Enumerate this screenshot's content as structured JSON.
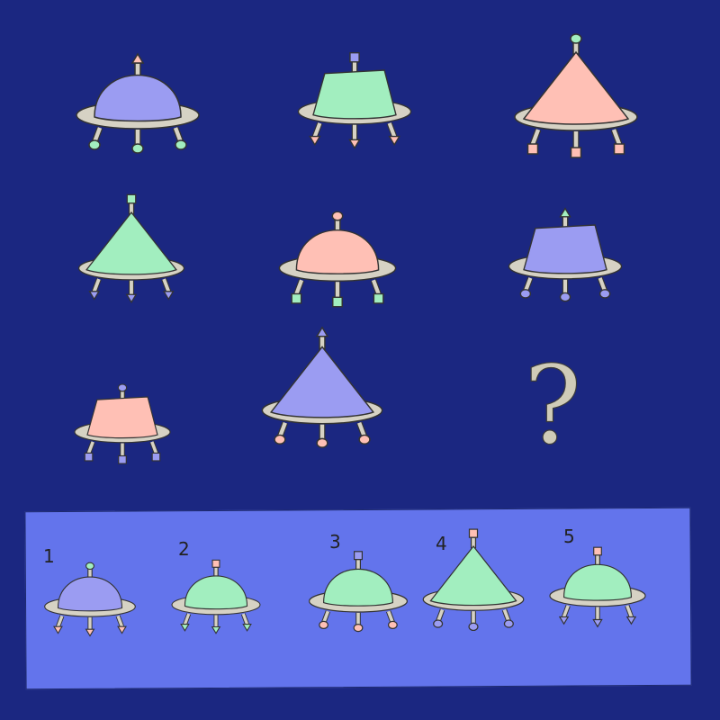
{
  "colors": {
    "background": "#1b2781",
    "panel": "#6374ec",
    "saucer": "#d6d2c4",
    "outline": "#333333",
    "purple": "#9b9cf2",
    "green": "#a2eebf",
    "pink": "#ffc0b5"
  },
  "grid": [
    {
      "dome": "round",
      "body": "purple",
      "antenna": "arrow",
      "antenna_color": "pink",
      "legs": "circle",
      "legs_color": "green"
    },
    {
      "dome": "trapezoid",
      "body": "green",
      "antenna": "square",
      "antenna_color": "purple",
      "legs": "arrow",
      "legs_color": "pink"
    },
    {
      "dome": "triangle",
      "body": "pink",
      "antenna": "circle",
      "antenna_color": "green",
      "legs": "square",
      "legs_color": "pink"
    },
    {
      "dome": "triangle",
      "body": "green",
      "antenna": "square",
      "antenna_color": "green",
      "legs": "arrow",
      "legs_color": "purple"
    },
    {
      "dome": "round",
      "body": "pink",
      "antenna": "circle",
      "antenna_color": "pink",
      "legs": "square",
      "legs_color": "green"
    },
    {
      "dome": "trapezoid",
      "body": "purple",
      "antenna": "arrow",
      "antenna_color": "green",
      "legs": "circle",
      "legs_color": "purple"
    },
    {
      "dome": "trapezoid",
      "body": "pink",
      "antenna": "circle",
      "antenna_color": "purple",
      "legs": "square",
      "legs_color": "purple"
    },
    {
      "dome": "triangle",
      "body": "purple",
      "antenna": "arrow",
      "antenna_color": "purple",
      "legs": "circle",
      "legs_color": "pink"
    }
  ],
  "question_mark": "?",
  "options": [
    {
      "label": "1",
      "dome": "round",
      "body": "purple",
      "antenna": "circle",
      "antenna_color": "green",
      "legs": "arrow",
      "legs_color": "pink"
    },
    {
      "label": "2",
      "dome": "round",
      "body": "green",
      "antenna": "square",
      "antenna_color": "pink",
      "legs": "arrow",
      "legs_color": "green"
    },
    {
      "label": "3",
      "dome": "round",
      "body": "green",
      "antenna": "square",
      "antenna_color": "purple",
      "legs": "circle",
      "legs_color": "pink"
    },
    {
      "label": "4",
      "dome": "triangle",
      "body": "green",
      "antenna": "square",
      "antenna_color": "pink",
      "legs": "circle",
      "legs_color": "purple"
    },
    {
      "label": "5",
      "dome": "round",
      "body": "green",
      "antenna": "square",
      "antenna_color": "pink",
      "legs": "arrow",
      "legs_color": "purple"
    }
  ]
}
